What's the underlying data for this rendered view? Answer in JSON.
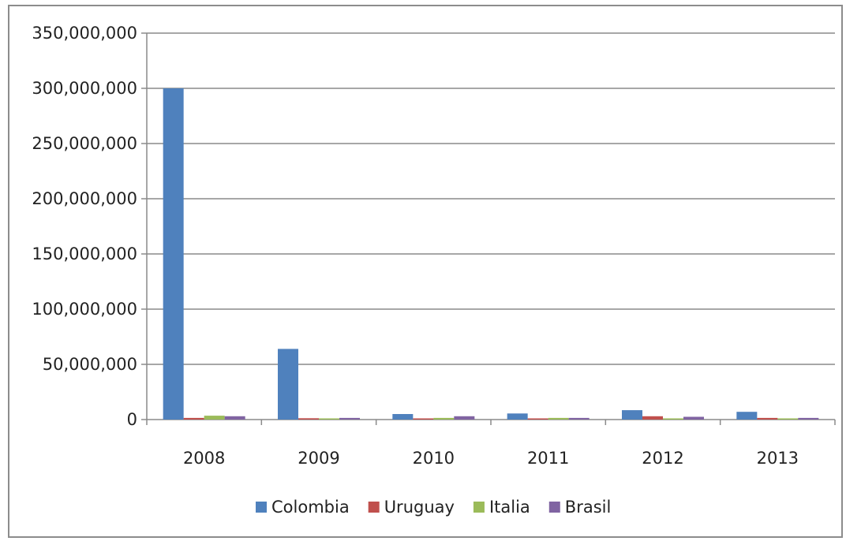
{
  "chart_data": {
    "type": "bar",
    "title": "",
    "xlabel": "",
    "ylabel": "",
    "categories": [
      "2008",
      "2009",
      "2010",
      "2011",
      "2012",
      "2013"
    ],
    "ylim": [
      0,
      350000000
    ],
    "yticks": [
      0,
      50000000,
      100000000,
      150000000,
      200000000,
      250000000,
      300000000,
      350000000
    ],
    "ytick_labels": [
      "0",
      "50,000,000",
      "100,000,000",
      "150,000,000",
      "200,000,000",
      "250,000,000",
      "300,000,000",
      "350,000,000"
    ],
    "grid": true,
    "legend_position": "bottom",
    "series": [
      {
        "name": "Colombia",
        "color": "#4f81bd",
        "values": [
          300000000,
          64000000,
          5000000,
          5500000,
          8500000,
          7000000
        ]
      },
      {
        "name": "Uruguay",
        "color": "#c0504d",
        "values": [
          1500000,
          1200000,
          600000,
          700000,
          3000000,
          1500000
        ]
      },
      {
        "name": "Italia",
        "color": "#9bbb59",
        "values": [
          3500000,
          500000,
          1500000,
          1500000,
          1000000,
          800000
        ]
      },
      {
        "name": "Brasil",
        "color": "#8064a2",
        "values": [
          3000000,
          1500000,
          3000000,
          1500000,
          2500000,
          1500000
        ]
      }
    ]
  }
}
